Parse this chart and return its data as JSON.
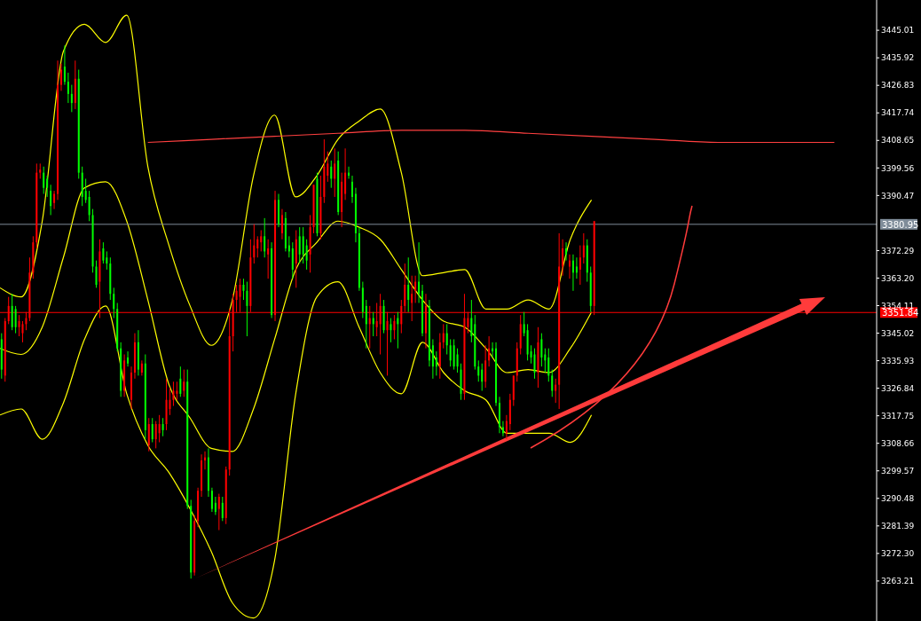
{
  "chart_data": {
    "type": "candlestick",
    "categories": [
      null,
      null,
      null,
      null,
      null,
      null,
      null,
      null,
      null,
      null,
      null,
      null,
      null,
      null,
      null,
      null,
      null,
      null,
      null,
      null,
      null,
      null,
      null,
      null,
      null,
      null,
      null,
      null,
      null,
      null,
      null,
      null,
      null,
      null,
      null,
      null,
      null,
      null,
      null,
      null,
      null,
      null,
      null,
      null,
      null,
      null,
      null,
      null,
      null,
      null,
      null,
      null,
      null,
      null,
      null,
      null,
      null,
      null,
      null,
      null,
      null,
      null,
      null,
      null,
      null,
      null,
      null,
      null,
      null,
      null,
      null,
      null,
      null,
      null,
      null,
      null,
      null,
      null,
      null,
      null,
      null,
      null,
      null,
      null,
      null,
      null,
      null,
      null,
      null,
      null,
      null,
      null,
      null,
      null,
      null,
      null,
      null,
      null,
      null,
      null,
      null,
      null,
      null,
      null,
      null,
      null,
      null,
      null,
      null,
      null,
      null,
      null,
      null,
      null,
      null,
      null,
      null,
      null,
      null,
      null,
      null,
      null,
      null,
      null,
      null,
      null,
      null,
      null,
      null,
      null,
      null,
      null,
      null,
      null,
      null,
      null,
      null,
      null,
      null,
      null,
      null,
      null,
      null,
      null,
      null,
      null,
      null,
      null,
      null,
      null,
      null,
      null,
      null,
      null,
      null,
      null,
      null,
      null,
      null,
      null,
      null,
      null,
      null,
      null,
      null,
      null,
      null,
      null,
      null,
      null,
      null,
      null,
      null,
      null,
      null,
      null,
      null,
      null,
      null,
      null,
      null,
      null,
      null,
      null,
      null,
      null,
      null,
      null,
      null,
      null,
      null,
      null,
      null,
      null,
      null,
      null,
      null,
      null,
      null,
      null,
      null,
      null,
      null,
      null,
      null,
      null,
      null,
      null,
      null,
      null,
      null,
      null,
      null,
      null,
      null,
      null,
      null,
      null,
      null,
      null,
      null,
      null,
      null,
      null,
      null,
      null,
      null,
      null,
      null,
      null,
      null,
      null,
      null,
      null,
      null,
      null,
      null,
      null,
      null,
      null,
      null,
      null,
      null,
      null,
      null,
      null,
      null,
      null,
      null,
      null
    ],
    "ohlc": [
      [
        3343,
        3345,
        3330,
        3333
      ],
      [
        3331,
        3350,
        3329,
        3349
      ],
      [
        3349,
        3357,
        3348,
        3354
      ],
      [
        3354,
        3358,
        3346,
        3347
      ],
      [
        3353,
        3354,
        3345,
        3347
      ],
      [
        3347,
        3351,
        3344,
        3349
      ],
      [
        3345,
        3349,
        3342,
        3348
      ],
      [
        3348,
        3352,
        3346,
        3350
      ],
      [
        3350,
        3370,
        3349,
        3365
      ],
      [
        3365,
        3377,
        3363,
        3375
      ],
      [
        3375,
        3401,
        3373,
        3398
      ],
      [
        3398,
        3401,
        3396,
        3399
      ],
      [
        3398,
        3400,
        3391,
        3393
      ],
      [
        3396,
        3397,
        3390,
        3393
      ],
      [
        3392,
        3394,
        3384,
        3387
      ],
      [
        3388,
        3392,
        3386,
        3391
      ],
      [
        3391,
        3435,
        3389,
        3427
      ],
      [
        3427,
        3434,
        3425,
        3432
      ],
      [
        3433,
        3440,
        3427,
        3428
      ],
      [
        3428,
        3431,
        3421,
        3424
      ],
      [
        3424,
        3427,
        3418,
        3421
      ],
      [
        3421,
        3435,
        3419,
        3429
      ],
      [
        3429,
        3432,
        3396,
        3398
      ],
      [
        3398,
        3400,
        3387,
        3390
      ],
      [
        3392,
        3396,
        3388,
        3389
      ],
      [
        3390,
        3392,
        3382,
        3384
      ],
      [
        3384,
        3386,
        3365,
        3367
      ],
      [
        3367,
        3369,
        3360,
        3361
      ],
      [
        3362,
        3376,
        3350,
        3372
      ],
      [
        3373,
        3375,
        3368,
        3369
      ],
      [
        3370,
        3372,
        3366,
        3368
      ],
      [
        3368,
        3370,
        3356,
        3358
      ],
      [
        3358,
        3360,
        3350,
        3353
      ],
      [
        3353,
        3355,
        3339,
        3340
      ],
      [
        3340,
        3342,
        3324,
        3326
      ],
      [
        3326,
        3338,
        3324,
        3336
      ],
      [
        3337,
        3339,
        3334,
        3335
      ],
      [
        3323,
        3334,
        3320,
        3332
      ],
      [
        3332,
        3345,
        3330,
        3342
      ],
      [
        3342,
        3346,
        3331,
        3333
      ],
      [
        3332,
        3336,
        3331,
        3335
      ],
      [
        3335,
        3338,
        3310,
        3313
      ],
      [
        3308,
        3317,
        3306,
        3315
      ],
      [
        3315,
        3317,
        3309,
        3310
      ],
      [
        3310,
        3316,
        3307,
        3315
      ],
      [
        3312,
        3318,
        3309,
        3315
      ],
      [
        3315,
        3317,
        3311,
        3313
      ],
      [
        3315,
        3330,
        3313,
        3323
      ],
      [
        3320,
        3327,
        3318,
        3323
      ],
      [
        3323,
        3329,
        3321,
        3326
      ],
      [
        3325,
        3329,
        3323,
        3326
      ],
      [
        3330,
        3334,
        3324,
        3325
      ],
      [
        3326,
        3333,
        3324,
        3329
      ],
      [
        3329,
        3333,
        3287,
        3288
      ],
      [
        3288,
        3290,
        3264,
        3266
      ],
      [
        3266,
        3285,
        3265,
        3283
      ],
      [
        3283,
        3294,
        3281,
        3293
      ],
      [
        3293,
        3305,
        3291,
        3303
      ],
      [
        3303,
        3306,
        3300,
        3304
      ],
      [
        3304,
        3307,
        3291,
        3293
      ],
      [
        3293,
        3294,
        3286,
        3287
      ],
      [
        3289,
        3291,
        3285,
        3286
      ],
      [
        3287,
        3292,
        3280,
        3291
      ],
      [
        3289,
        3291,
        3283,
        3284
      ],
      [
        3284,
        3301,
        3282,
        3300
      ],
      [
        3300,
        3353,
        3298,
        3344
      ],
      [
        3344,
        3358,
        3339,
        3356
      ],
      [
        3356,
        3361,
        3352,
        3359
      ],
      [
        3357,
        3363,
        3352,
        3361
      ],
      [
        3361,
        3363,
        3356,
        3359
      ],
      [
        3359,
        3362,
        3344,
        3354
      ],
      [
        3354,
        3376,
        3352,
        3370
      ],
      [
        3370,
        3381,
        3368,
        3374
      ],
      [
        3373,
        3377,
        3370,
        3376
      ],
      [
        3375,
        3379,
        3372,
        3377
      ],
      [
        3377,
        3383,
        3370,
        3372
      ],
      [
        3371,
        3376,
        3363,
        3373
      ],
      [
        3373,
        3375,
        3350,
        3351
      ],
      [
        3351,
        3392,
        3349,
        3389
      ],
      [
        3389,
        3391,
        3380,
        3381
      ],
      [
        3378,
        3386,
        3376,
        3384
      ],
      [
        3383,
        3385,
        3372,
        3373
      ],
      [
        3374,
        3377,
        3370,
        3372
      ],
      [
        3373,
        3375,
        3363,
        3366
      ],
      [
        3368,
        3379,
        3360,
        3376
      ],
      [
        3377,
        3380,
        3368,
        3371
      ],
      [
        3377,
        3380,
        3368,
        3371
      ],
      [
        3374,
        3376,
        3366,
        3369
      ],
      [
        3371,
        3384,
        3365,
        3380
      ],
      [
        3380,
        3394,
        3378,
        3394
      ],
      [
        3396,
        3398,
        3377,
        3378
      ],
      [
        3378,
        3397,
        3376,
        3390
      ],
      [
        3390,
        3409,
        3388,
        3400
      ],
      [
        3397,
        3405,
        3395,
        3401
      ],
      [
        3400,
        3402,
        3393,
        3396
      ],
      [
        3396,
        3406,
        3390,
        3401
      ],
      [
        3402,
        3405,
        3384,
        3385
      ],
      [
        3385,
        3398,
        3380,
        3395
      ],
      [
        3391,
        3406,
        3389,
        3398
      ],
      [
        3398,
        3400,
        3396,
        3397
      ],
      [
        3395,
        3397,
        3388,
        3390
      ],
      [
        3391,
        3393,
        3375,
        3378
      ],
      [
        3378,
        3380,
        3359,
        3360
      ],
      [
        3360,
        3362,
        3350,
        3352
      ],
      [
        3354,
        3356,
        3340,
        3348
      ],
      [
        3348,
        3354,
        3340,
        3350
      ],
      [
        3350,
        3352,
        3344,
        3348
      ],
      [
        3347,
        3355,
        3344,
        3349
      ],
      [
        3348,
        3358,
        3338,
        3354
      ],
      [
        3354,
        3356,
        3345,
        3346
      ],
      [
        3346,
        3352,
        3331,
        3349
      ],
      [
        3348,
        3350,
        3342,
        3346
      ],
      [
        3346,
        3351,
        3343,
        3349
      ],
      [
        3350,
        3352,
        3340,
        3348
      ],
      [
        3348,
        3356,
        3345,
        3354
      ],
      [
        3354,
        3368,
        3352,
        3361
      ],
      [
        3361,
        3370,
        3352,
        3356
      ],
      [
        3355,
        3364,
        3349,
        3358
      ],
      [
        3359,
        3364,
        3355,
        3362
      ],
      [
        3362,
        3375,
        3355,
        3358
      ],
      [
        3359,
        3361,
        3344,
        3345
      ],
      [
        3345,
        3358,
        3340,
        3354
      ],
      [
        3354,
        3356,
        3334,
        3336
      ],
      [
        3341,
        3343,
        3330,
        3334
      ],
      [
        3337,
        3339,
        3331,
        3334
      ],
      [
        3334,
        3345,
        3330,
        3342
      ],
      [
        3342,
        3348,
        3340,
        3345
      ],
      [
        3345,
        3348,
        3338,
        3341
      ],
      [
        3341,
        3343,
        3334,
        3336
      ],
      [
        3341,
        3343,
        3333,
        3334
      ],
      [
        3338,
        3340,
        3332,
        3334
      ],
      [
        3333,
        3335,
        3323,
        3325
      ],
      [
        3325,
        3358,
        3323,
        3350
      ],
      [
        3347,
        3352,
        3345,
        3350
      ],
      [
        3350,
        3356,
        3342,
        3344
      ],
      [
        3348,
        3351,
        3333,
        3334
      ],
      [
        3334,
        3336,
        3329,
        3331
      ],
      [
        3333,
        3335,
        3326,
        3329
      ],
      [
        3329,
        3341,
        3327,
        3336
      ],
      [
        3336,
        3344,
        3334,
        3340
      ],
      [
        3340,
        3342,
        3337,
        3339
      ],
      [
        3340,
        3342,
        3321,
        3322
      ],
      [
        3322,
        3324,
        3312,
        3314
      ],
      [
        3314,
        3316,
        3311,
        3312
      ],
      [
        3312,
        3318,
        3310,
        3316
      ],
      [
        3315,
        3325,
        3313,
        3323
      ],
      [
        3323,
        3331,
        3321,
        3331
      ],
      [
        3331,
        3342,
        3329,
        3340
      ],
      [
        3340,
        3351,
        3338,
        3348
      ],
      [
        3348,
        3352,
        3344,
        3345
      ],
      [
        3346,
        3348,
        3336,
        3338
      ],
      [
        3339,
        3341,
        3335,
        3337
      ],
      [
        3338,
        3340,
        3330,
        3332
      ],
      [
        3332,
        3347,
        3327,
        3342
      ],
      [
        3343,
        3345,
        3334,
        3337
      ],
      [
        3338,
        3340,
        3332,
        3336
      ],
      [
        3337,
        3340,
        3329,
        3331
      ],
      [
        3331,
        3333,
        3324,
        3326
      ],
      [
        3326,
        3330,
        3322,
        3328
      ],
      [
        3328,
        3378,
        3320,
        3367
      ],
      [
        3367,
        3376,
        3364,
        3373
      ],
      [
        3373,
        3375,
        3369,
        3371
      ],
      [
        3367,
        3371,
        3363,
        3369
      ],
      [
        3369,
        3371,
        3359,
        3365
      ],
      [
        3367,
        3370,
        3363,
        3365
      ],
      [
        3366,
        3374,
        3361,
        3370
      ],
      [
        3370,
        3378,
        3368,
        3374
      ],
      [
        3374,
        3376,
        3362,
        3365
      ],
      [
        3365,
        3367,
        3352,
        3354
      ],
      [
        3354,
        3382,
        3351,
        3382
      ],
      null,
      null,
      null,
      null,
      null,
      null,
      null,
      null,
      null,
      null,
      null,
      null,
      null,
      null,
      null,
      null,
      null,
      null,
      null,
      null,
      null,
      null,
      null,
      null,
      null,
      null,
      null,
      null,
      null,
      null,
      null,
      null,
      null,
      null,
      null,
      null,
      null,
      null,
      null,
      null,
      null,
      null,
      null,
      null,
      null,
      null,
      null,
      null,
      null,
      null,
      null,
      null,
      null,
      null,
      null,
      null,
      null,
      null,
      null,
      null,
      null,
      null,
      null,
      null,
      null,
      null,
      null,
      null,
      null,
      null,
      null,
      null,
      null,
      null,
      null,
      null,
      null,
      null,
      null,
      null
    ],
    "series": [
      {
        "type": "line",
        "color": "#ffff00",
        "values": [
          3360,
          null,
          null,
          null,
          null,
          null,
          3357,
          null,
          null,
          null,
          null,
          null,
          3382,
          null,
          null,
          null,
          null,
          null,
          3438,
          null,
          null,
          null,
          null,
          null,
          3447,
          null,
          null,
          null,
          null,
          null,
          3441,
          null,
          null,
          null,
          null,
          null,
          3450,
          null,
          null,
          null,
          null,
          null,
          3400,
          null,
          null,
          null,
          null,
          null,
          3374,
          null,
          null,
          null,
          null,
          null,
          3354,
          null,
          null,
          null,
          null,
          null,
          3341,
          null,
          null,
          null,
          null,
          null,
          3356,
          null,
          null,
          null,
          null,
          null,
          3397,
          null,
          null,
          null,
          null,
          null,
          3417,
          null,
          null,
          null,
          null,
          null,
          3390,
          null,
          null,
          null,
          null,
          null,
          3397,
          null,
          null,
          null,
          null,
          null,
          3409,
          null,
          null,
          null,
          null,
          null,
          3415,
          null,
          null,
          null,
          null,
          null,
          3419,
          null,
          null,
          null,
          null,
          null,
          3398,
          null,
          null,
          null,
          null,
          null,
          3364,
          null,
          null,
          null,
          null,
          null,
          3365,
          null,
          null,
          null,
          null,
          null,
          3366,
          null,
          null,
          null,
          null,
          null,
          3353,
          null,
          null,
          null,
          null,
          null,
          3353,
          null,
          null,
          null,
          null,
          null,
          3356,
          null,
          null,
          null,
          null,
          null,
          3353,
          null,
          null,
          null,
          null,
          null,
          3376,
          null,
          null,
          null,
          null,
          null,
          3389,
          null,
          null,
          null,
          null,
          null,
          null,
          null,
          null,
          null,
          null,
          null,
          null,
          null,
          null,
          null,
          null,
          null,
          null,
          null,
          null,
          null,
          null,
          null,
          null,
          null,
          null,
          null,
          null,
          null,
          null,
          null,
          null,
          null,
          null,
          null,
          null,
          null,
          null,
          null,
          null,
          null,
          null,
          null,
          null,
          null,
          null,
          null,
          null,
          null,
          null,
          null,
          null,
          null,
          null,
          null,
          null,
          null,
          null,
          null,
          null,
          null,
          null,
          null,
          null,
          null,
          null,
          null,
          null,
          null,
          null,
          null,
          null,
          null,
          null,
          null,
          null,
          null,
          null,
          null,
          null,
          null
        ]
      },
      {
        "type": "line",
        "color": "#ffff00",
        "values": [
          3340,
          null,
          null,
          null,
          null,
          null,
          3338,
          null,
          null,
          null,
          null,
          null,
          3347,
          null,
          null,
          null,
          null,
          null,
          3370,
          null,
          null,
          null,
          null,
          null,
          3393,
          null,
          null,
          null,
          null,
          null,
          3395,
          null,
          null,
          null,
          null,
          null,
          3382,
          null,
          null,
          null,
          null,
          null,
          3356,
          null,
          null,
          null,
          null,
          null,
          3328,
          null,
          null,
          null,
          null,
          null,
          3317,
          null,
          null,
          null,
          null,
          null,
          3307,
          null,
          null,
          null,
          null,
          null,
          3306,
          null,
          null,
          null,
          null,
          null,
          3320,
          null,
          null,
          null,
          null,
          null,
          3343,
          null,
          null,
          null,
          null,
          null,
          3366,
          null,
          null,
          null,
          null,
          null,
          3375,
          null,
          null,
          null,
          null,
          null,
          3382,
          null,
          null,
          null,
          null,
          null,
          3380,
          null,
          null,
          null,
          null,
          null,
          3376,
          null,
          null,
          null,
          null,
          null,
          3366,
          null,
          null,
          null,
          null,
          null,
          3356,
          null,
          null,
          null,
          null,
          null,
          3349,
          null,
          null,
          null,
          null,
          null,
          3347,
          null,
          null,
          null,
          null,
          null,
          3340,
          null,
          null,
          null,
          null,
          null,
          3332,
          null,
          null,
          null,
          null,
          null,
          3333,
          null,
          null,
          null,
          null,
          null,
          3332,
          null,
          null,
          null,
          null,
          null,
          3340,
          null,
          null,
          null,
          null,
          null,
          3352,
          null,
          null,
          null,
          null,
          null,
          null,
          null,
          null,
          null,
          null,
          null,
          null,
          null,
          null,
          null,
          null,
          null,
          null,
          null,
          null,
          null,
          null,
          null,
          null,
          null,
          null,
          null,
          null,
          null,
          null,
          null,
          null,
          null,
          null,
          null,
          null,
          null,
          null,
          null,
          null,
          null,
          null,
          null,
          null,
          null,
          null,
          null,
          null,
          null,
          null,
          null,
          null,
          null,
          null,
          null,
          null,
          null,
          null,
          null,
          null,
          null,
          null,
          null,
          null,
          null,
          null,
          null,
          null,
          null,
          null,
          null,
          null,
          null,
          null,
          null,
          null,
          null,
          null,
          null,
          null,
          null
        ]
      },
      {
        "type": "line",
        "color": "#ffff00",
        "values": [
          3318,
          null,
          null,
          null,
          null,
          null,
          3320,
          null,
          null,
          null,
          null,
          null,
          3310,
          null,
          null,
          null,
          null,
          null,
          3322,
          null,
          null,
          null,
          null,
          null,
          3343,
          null,
          null,
          null,
          null,
          null,
          3354,
          null,
          null,
          null,
          null,
          null,
          3325,
          null,
          null,
          null,
          null,
          null,
          3308,
          null,
          null,
          null,
          null,
          null,
          3299,
          null,
          null,
          null,
          null,
          null,
          3287,
          null,
          null,
          null,
          null,
          null,
          3273,
          null,
          null,
          null,
          null,
          null,
          3256,
          null,
          null,
          null,
          null,
          null,
          3251,
          null,
          null,
          null,
          null,
          null,
          3270,
          null,
          null,
          null,
          null,
          null,
          3325,
          null,
          null,
          null,
          null,
          null,
          3357,
          null,
          null,
          null,
          null,
          null,
          3362,
          null,
          null,
          null,
          null,
          null,
          3347,
          null,
          null,
          null,
          null,
          null,
          3332,
          null,
          null,
          null,
          null,
          null,
          3325,
          null,
          null,
          null,
          null,
          null,
          3342,
          null,
          null,
          null,
          null,
          null,
          3332,
          null,
          null,
          null,
          null,
          null,
          3326,
          null,
          null,
          null,
          null,
          null,
          3323,
          null,
          null,
          null,
          null,
          null,
          3312,
          null,
          null,
          null,
          null,
          null,
          3312,
          null,
          null,
          null,
          null,
          null,
          3312,
          null,
          null,
          null,
          null,
          null,
          3309,
          null,
          null,
          null,
          null,
          null,
          3318,
          null,
          null,
          null,
          null,
          null,
          null,
          null,
          null,
          null,
          null,
          null,
          null,
          null,
          null,
          null,
          null,
          null,
          null,
          null,
          null,
          null,
          null,
          null,
          null,
          null,
          null,
          null,
          null,
          null,
          null,
          null,
          null,
          null,
          null,
          null,
          null,
          null,
          null,
          null,
          null,
          null,
          null,
          null,
          null,
          null,
          null,
          null,
          null,
          null,
          null,
          null,
          null,
          null,
          null,
          null,
          null,
          null,
          null,
          null,
          null,
          null,
          null,
          null,
          null,
          null,
          null,
          null,
          null,
          null,
          null,
          null,
          null,
          null,
          null,
          null,
          null,
          null,
          null,
          null,
          null,
          null
        ]
      },
      {
        "type": "line",
        "color": "#ff4040",
        "values": [
          null,
          null,
          null,
          null,
          null,
          null,
          null,
          null,
          null,
          null,
          null,
          null,
          null,
          null,
          null,
          null,
          null,
          null,
          null,
          null,
          null,
          null,
          null,
          null,
          null,
          null,
          null,
          null,
          null,
          null,
          null,
          null,
          null,
          null,
          null,
          null,
          null,
          null,
          null,
          null,
          null,
          null,
          3408,
          null,
          null,
          null,
          null,
          null,
          null,
          null,
          null,
          null,
          null,
          null,
          null,
          null,
          null,
          null,
          null,
          null,
          3409,
          null,
          null,
          null,
          null,
          null,
          null,
          null,
          null,
          null,
          null,
          null,
          null,
          null,
          null,
          null,
          null,
          null,
          3410,
          null,
          null,
          null,
          null,
          null,
          null,
          null,
          null,
          null,
          null,
          null,
          null,
          null,
          null,
          null,
          null,
          null,
          3411,
          null,
          null,
          null,
          null,
          null,
          null,
          null,
          null,
          null,
          null,
          null,
          null,
          null,
          null,
          null,
          null,
          null,
          3412,
          null,
          null,
          null,
          null,
          null,
          null,
          null,
          null,
          null,
          null,
          null,
          null,
          null,
          null,
          null,
          null,
          null,
          3412,
          null,
          null,
          null,
          null,
          null,
          null,
          null,
          null,
          null,
          null,
          null,
          null,
          null,
          null,
          null,
          null,
          null,
          3411,
          null,
          null,
          null,
          null,
          null,
          null,
          null,
          null,
          null,
          null,
          null,
          null,
          null,
          null,
          null,
          null,
          null,
          3410,
          null,
          null,
          null,
          null,
          null,
          null,
          null,
          null,
          null,
          null,
          null,
          null,
          null,
          null,
          null,
          null,
          null,
          3409,
          null,
          null,
          null,
          null,
          null,
          null,
          null,
          null,
          null,
          null,
          null,
          null,
          null,
          null,
          null,
          null,
          null,
          3408,
          null,
          null,
          null,
          null,
          null,
          null,
          null,
          null,
          null,
          null,
          null,
          null,
          null,
          null,
          null,
          null,
          null,
          3408,
          null,
          null,
          null,
          null,
          null,
          null,
          null,
          null,
          null,
          null,
          null,
          null,
          null,
          null,
          3408,
          null,
          null,
          null,
          null,
          null,
          null,
          null,
          null,
          null,
          null,
          null,
          null
        ]
      }
    ],
    "ylim": [
      3250,
      3455
    ],
    "yticks": [
      3445.01,
      3435.92,
      3426.83,
      3417.74,
      3408.65,
      3399.56,
      3390.47,
      3372.29,
      {
        "value": 3363.2,
        "label": "3363.20"
      },
      3354.11,
      3345.02,
      3335.93,
      3326.84,
      3317.75,
      3308.66,
      3299.57,
      3290.48,
      3281.39,
      {
        "value": 3272.3,
        "label": "3272.30"
      },
      3263.21
    ],
    "ref_lines": [
      {
        "axis": "y",
        "value": 3380.95,
        "label": "3380.95",
        "color": "#7f8c99"
      },
      {
        "axis": "y",
        "value": 3351.84,
        "label": "3351.84",
        "color": "#ff0000"
      }
    ],
    "tick_labels": "y"
  }
}
